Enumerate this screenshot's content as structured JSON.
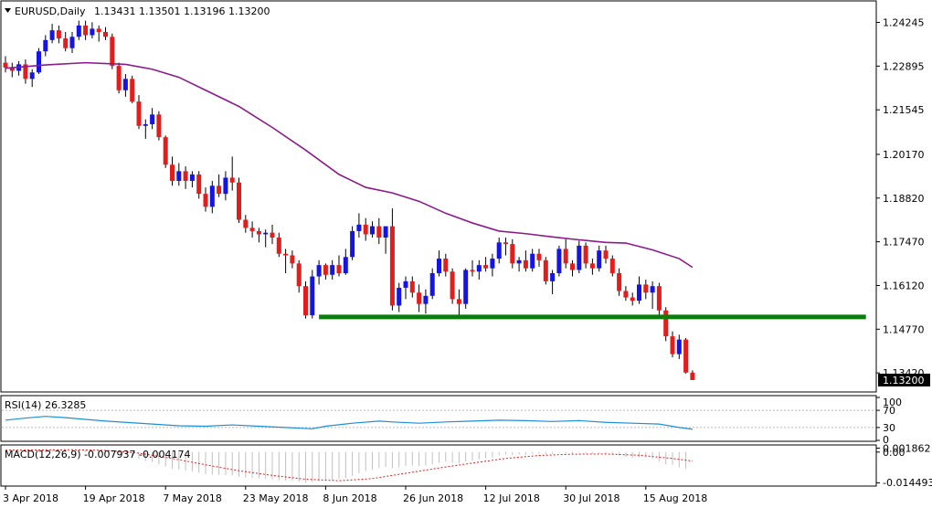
{
  "chart_data": [
    {
      "type": "candlestick",
      "pane": "price",
      "title": "EURUSD,Daily",
      "ohlc_text": "1.13431 1.13501 1.13196 1.13200",
      "current_price": "1.13200",
      "y_ticks": [
        "1.24245",
        "1.22895",
        "1.21545",
        "1.20170",
        "1.18820",
        "1.17470",
        "1.16120",
        "1.14770",
        "1.13420"
      ],
      "ylim": [
        1.1286,
        1.2488
      ],
      "x_ticks": [
        "3 Apr 2018",
        "19 Apr 2018",
        "7 May 2018",
        "23 May 2018",
        "8 Jun 2018",
        "26 Jun 2018",
        "12 Jul 2018",
        "30 Jul 2018",
        "15 Aug 2018"
      ],
      "colors": {
        "bull": "#1414e6",
        "bear": "#e31c1c",
        "ma": "#8c1a8c",
        "support": "#0a7d0a"
      },
      "candles": [
        [
          1.23,
          1.232,
          1.227,
          1.2285
        ],
        [
          1.2285,
          1.23,
          1.2255,
          1.2275
        ],
        [
          1.2275,
          1.2305,
          1.226,
          1.2295
        ],
        [
          1.2295,
          1.231,
          1.2235,
          1.225
        ],
        [
          1.225,
          1.228,
          1.2225,
          1.227
        ],
        [
          1.227,
          1.2345,
          1.2265,
          1.2335
        ],
        [
          1.2335,
          1.2385,
          1.232,
          1.237
        ],
        [
          1.237,
          1.242,
          1.236,
          1.24
        ],
        [
          1.24,
          1.2415,
          1.236,
          1.2375
        ],
        [
          1.2375,
          1.2395,
          1.2335,
          1.2345
        ],
        [
          1.2345,
          1.2395,
          1.233,
          1.238
        ],
        [
          1.238,
          1.243,
          1.237,
          1.2415
        ],
        [
          1.2415,
          1.243,
          1.237,
          1.2385
        ],
        [
          1.2385,
          1.2425,
          1.2375,
          1.2405
        ],
        [
          1.2405,
          1.2415,
          1.2365,
          1.2395
        ],
        [
          1.2395,
          1.241,
          1.237,
          1.238
        ],
        [
          1.238,
          1.239,
          1.228,
          1.229
        ],
        [
          1.229,
          1.23,
          1.2205,
          1.2215
        ],
        [
          1.2215,
          1.2265,
          1.2195,
          1.225
        ],
        [
          1.225,
          1.226,
          1.2175,
          1.218
        ],
        [
          1.218,
          1.22,
          1.2095,
          1.2105
        ],
        [
          1.2105,
          1.2125,
          1.2065,
          1.211
        ],
        [
          1.211,
          1.216,
          1.2095,
          1.214
        ],
        [
          1.214,
          1.215,
          1.206,
          1.207
        ],
        [
          1.207,
          1.2075,
          1.1975,
          1.1985
        ],
        [
          1.1985,
          1.201,
          1.192,
          1.1935
        ],
        [
          1.1935,
          1.199,
          1.192,
          1.1965
        ],
        [
          1.1965,
          1.198,
          1.191,
          1.1935
        ],
        [
          1.1935,
          1.1965,
          1.1915,
          1.1955
        ],
        [
          1.1955,
          1.1965,
          1.188,
          1.1895
        ],
        [
          1.1895,
          1.1915,
          1.184,
          1.1855
        ],
        [
          1.1855,
          1.1935,
          1.1835,
          1.192
        ],
        [
          1.192,
          1.1955,
          1.1885,
          1.1895
        ],
        [
          1.1895,
          1.1965,
          1.1875,
          1.1945
        ],
        [
          1.1945,
          1.201,
          1.1905,
          1.193
        ],
        [
          1.193,
          1.1945,
          1.1805,
          1.1815
        ],
        [
          1.1815,
          1.183,
          1.1775,
          1.179
        ],
        [
          1.179,
          1.181,
          1.176,
          1.178
        ],
        [
          1.178,
          1.179,
          1.1745,
          1.177
        ],
        [
          1.177,
          1.1785,
          1.173,
          1.1775
        ],
        [
          1.1775,
          1.18,
          1.174,
          1.176
        ],
        [
          1.176,
          1.1775,
          1.17,
          1.171
        ],
        [
          1.171,
          1.1725,
          1.165,
          1.1705
        ],
        [
          1.1705,
          1.172,
          1.1665,
          1.168
        ],
        [
          1.168,
          1.169,
          1.159,
          1.161
        ],
        [
          1.161,
          1.1625,
          1.151,
          1.152
        ],
        [
          1.152,
          1.166,
          1.151,
          1.164
        ],
        [
          1.164,
          1.169,
          1.1615,
          1.1675
        ],
        [
          1.1675,
          1.168,
          1.163,
          1.1645
        ],
        [
          1.1645,
          1.169,
          1.163,
          1.1675
        ],
        [
          1.1675,
          1.1705,
          1.164,
          1.165
        ],
        [
          1.165,
          1.1725,
          1.1645,
          1.17
        ],
        [
          1.17,
          1.1795,
          1.169,
          1.178
        ],
        [
          1.178,
          1.1835,
          1.176,
          1.18
        ],
        [
          1.18,
          1.182,
          1.175,
          1.177
        ],
        [
          1.177,
          1.181,
          1.176,
          1.1795
        ],
        [
          1.1795,
          1.182,
          1.174,
          1.176
        ],
        [
          1.176,
          1.1785,
          1.171,
          1.1795
        ],
        [
          1.1795,
          1.185,
          1.1535,
          1.155
        ],
        [
          1.155,
          1.162,
          1.153,
          1.1605
        ],
        [
          1.1605,
          1.164,
          1.157,
          1.1625
        ],
        [
          1.1625,
          1.164,
          1.1575,
          1.159
        ],
        [
          1.159,
          1.1615,
          1.153,
          1.1555
        ],
        [
          1.1555,
          1.16,
          1.1525,
          1.158
        ],
        [
          1.158,
          1.1665,
          1.157,
          1.165
        ],
        [
          1.165,
          1.172,
          1.164,
          1.1695
        ],
        [
          1.1695,
          1.171,
          1.164,
          1.1655
        ],
        [
          1.1655,
          1.1665,
          1.1555,
          1.157
        ],
        [
          1.157,
          1.16,
          1.152,
          1.1555
        ],
        [
          1.1555,
          1.1665,
          1.154,
          1.166
        ],
        [
          1.166,
          1.169,
          1.164,
          1.1655
        ],
        [
          1.1655,
          1.169,
          1.163,
          1.1675
        ],
        [
          1.1675,
          1.17,
          1.1655,
          1.1665
        ],
        [
          1.1665,
          1.171,
          1.164,
          1.1695
        ],
        [
          1.1695,
          1.176,
          1.168,
          1.1745
        ],
        [
          1.1745,
          1.176,
          1.1705,
          1.174
        ],
        [
          1.174,
          1.1755,
          1.1665,
          1.168
        ],
        [
          1.168,
          1.17,
          1.1655,
          1.169
        ],
        [
          1.169,
          1.172,
          1.1655,
          1.1665
        ],
        [
          1.1665,
          1.1725,
          1.1655,
          1.171
        ],
        [
          1.171,
          1.1725,
          1.167,
          1.169
        ],
        [
          1.169,
          1.17,
          1.1615,
          1.1625
        ],
        [
          1.1625,
          1.166,
          1.1585,
          1.165
        ],
        [
          1.165,
          1.1735,
          1.164,
          1.1725
        ],
        [
          1.1725,
          1.1755,
          1.1665,
          1.168
        ],
        [
          1.168,
          1.169,
          1.164,
          1.166
        ],
        [
          1.166,
          1.175,
          1.165,
          1.1735
        ],
        [
          1.1735,
          1.1745,
          1.1665,
          1.168
        ],
        [
          1.168,
          1.1695,
          1.1645,
          1.1665
        ],
        [
          1.1665,
          1.1735,
          1.1655,
          1.172
        ],
        [
          1.172,
          1.1735,
          1.168,
          1.1695
        ],
        [
          1.1695,
          1.1705,
          1.164,
          1.165
        ],
        [
          1.165,
          1.1665,
          1.158,
          1.1595
        ],
        [
          1.1595,
          1.161,
          1.1565,
          1.1575
        ],
        [
          1.1575,
          1.159,
          1.155,
          1.1565
        ],
        [
          1.1565,
          1.164,
          1.1555,
          1.1615
        ],
        [
          1.1615,
          1.163,
          1.157,
          1.159
        ],
        [
          1.159,
          1.1625,
          1.154,
          1.161
        ],
        [
          1.161,
          1.162,
          1.152,
          1.1535
        ],
        [
          1.1535,
          1.1545,
          1.144,
          1.1455
        ],
        [
          1.1455,
          1.147,
          1.139,
          1.14
        ],
        [
          1.14,
          1.146,
          1.1385,
          1.1445
        ],
        [
          1.1445,
          1.145,
          1.134,
          1.1343
        ],
        [
          1.1343,
          1.135,
          1.132,
          1.132
        ]
      ],
      "ma": [
        [
          0,
          1.2283
        ],
        [
          6,
          1.2293
        ],
        [
          12,
          1.23
        ],
        [
          18,
          1.2295
        ],
        [
          22,
          1.228
        ],
        [
          26,
          1.2255
        ],
        [
          30,
          1.2215
        ],
        [
          35,
          1.2165
        ],
        [
          40,
          1.21
        ],
        [
          45,
          1.203
        ],
        [
          50,
          1.1955
        ],
        [
          54,
          1.1915
        ],
        [
          58,
          1.1898
        ],
        [
          62,
          1.1872
        ],
        [
          66,
          1.1835
        ],
        [
          70,
          1.1805
        ],
        [
          74,
          1.178
        ],
        [
          78,
          1.1772
        ],
        [
          82,
          1.1762
        ],
        [
          86,
          1.1753
        ],
        [
          90,
          1.1745
        ],
        [
          93,
          1.1743
        ],
        [
          97,
          1.1722
        ],
        [
          101,
          1.1695
        ],
        [
          103,
          1.1668
        ]
      ],
      "support": {
        "y": 1.1515,
        "from": 47,
        "to": 129
      }
    },
    {
      "type": "line",
      "pane": "rsi",
      "title": "RSI(14) 26.3285",
      "y_ticks": [
        "100",
        "70",
        "30",
        "0"
      ],
      "ylim": [
        0,
        100
      ],
      "colors": {
        "line": "#1e8fd6"
      },
      "values": [
        [
          0,
          47
        ],
        [
          3,
          52
        ],
        [
          6,
          56
        ],
        [
          9,
          53
        ],
        [
          12,
          49
        ],
        [
          15,
          45
        ],
        [
          18,
          42
        ],
        [
          22,
          38
        ],
        [
          26,
          34
        ],
        [
          30,
          33
        ],
        [
          34,
          36
        ],
        [
          38,
          33
        ],
        [
          42,
          30
        ],
        [
          46,
          27
        ],
        [
          48,
          33
        ],
        [
          52,
          40
        ],
        [
          56,
          45
        ],
        [
          58,
          43
        ],
        [
          62,
          40
        ],
        [
          66,
          43
        ],
        [
          70,
          45
        ],
        [
          74,
          47
        ],
        [
          78,
          46
        ],
        [
          82,
          44
        ],
        [
          86,
          46
        ],
        [
          90,
          42
        ],
        [
          94,
          40
        ],
        [
          98,
          38
        ],
        [
          101,
          30
        ],
        [
          103,
          26
        ]
      ]
    },
    {
      "type": "histogram",
      "pane": "macd",
      "title": "MACD(12,26,9) -0.007937 -0.004174",
      "y_ticks": [
        "0.001862",
        "0.00",
        "-0.014493"
      ],
      "ylim": [
        -0.0156,
        0.0025
      ],
      "colors": {
        "hist": "#c0c0c0",
        "signal": "#e31c1c"
      },
      "hist": [
        0.001,
        0.0009,
        0.0008,
        0.001,
        0.0009,
        0.0011,
        0.0013,
        0.0015,
        0.0014,
        0.0012,
        0.0011,
        0.0012,
        0.0011,
        0.0012,
        0.001,
        0.0008,
        0.0004,
        -0.0004,
        -0.001,
        -0.002,
        -0.0032,
        -0.0042,
        -0.0048,
        -0.0058,
        -0.0068,
        -0.0078,
        -0.0082,
        -0.0088,
        -0.0092,
        -0.0098,
        -0.0104,
        -0.0106,
        -0.0108,
        -0.0108,
        -0.011,
        -0.0116,
        -0.012,
        -0.0122,
        -0.0124,
        -0.0126,
        -0.0128,
        -0.0132,
        -0.0134,
        -0.0136,
        -0.014,
        -0.0145,
        -0.0142,
        -0.0138,
        -0.0136,
        -0.0132,
        -0.0128,
        -0.0122,
        -0.0112,
        -0.01,
        -0.009,
        -0.0082,
        -0.0076,
        -0.007,
        -0.0076,
        -0.0072,
        -0.0066,
        -0.0064,
        -0.0066,
        -0.0064,
        -0.0058,
        -0.005,
        -0.0046,
        -0.005,
        -0.0052,
        -0.0044,
        -0.004,
        -0.0034,
        -0.003,
        -0.0024,
        -0.0016,
        -0.0012,
        -0.0014,
        -0.0012,
        -0.0012,
        -0.0008,
        -0.0008,
        -0.0012,
        -0.001,
        -0.0004,
        -0.0006,
        -0.0008,
        -0.0004,
        -0.0006,
        -0.0008,
        -0.0004,
        -0.0006,
        -0.001,
        -0.0016,
        -0.0022,
        -0.0026,
        -0.0024,
        -0.0026,
        -0.0032,
        -0.0044,
        -0.0058,
        -0.006,
        -0.0072,
        -0.0079
      ],
      "signal": [
        [
          0,
          0.0009
        ],
        [
          10,
          0.0011
        ],
        [
          15,
          0.0008
        ],
        [
          20,
          -0.0005
        ],
        [
          25,
          -0.003
        ],
        [
          30,
          -0.006
        ],
        [
          35,
          -0.0088
        ],
        [
          40,
          -0.011
        ],
        [
          45,
          -0.0128
        ],
        [
          50,
          -0.0135
        ],
        [
          55,
          -0.0125
        ],
        [
          60,
          -0.01
        ],
        [
          65,
          -0.0075
        ],
        [
          70,
          -0.0052
        ],
        [
          75,
          -0.003
        ],
        [
          80,
          -0.0016
        ],
        [
          85,
          -0.001
        ],
        [
          90,
          -0.0009
        ],
        [
          95,
          -0.0015
        ],
        [
          100,
          -0.003
        ],
        [
          103,
          -0.0042
        ]
      ]
    }
  ]
}
